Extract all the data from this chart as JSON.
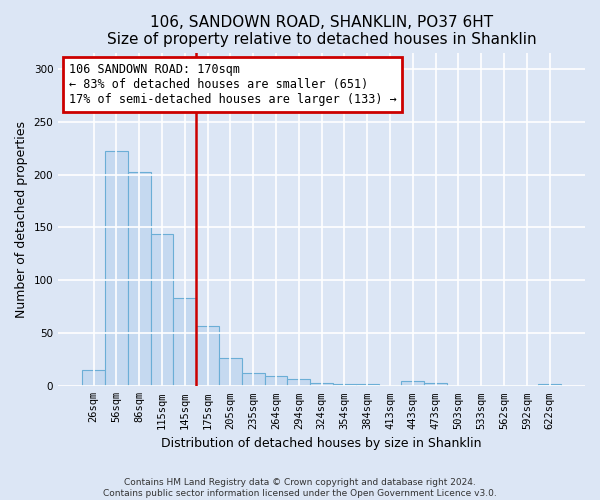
{
  "title1": "106, SANDOWN ROAD, SHANKLIN, PO37 6HT",
  "title2": "Size of property relative to detached houses in Shanklin",
  "xlabel": "Distribution of detached houses by size in Shanklin",
  "ylabel": "Number of detached properties",
  "footnote": "Contains HM Land Registry data © Crown copyright and database right 2024.\nContains public sector information licensed under the Open Government Licence v3.0.",
  "bar_labels": [
    "26sqm",
    "56sqm",
    "86sqm",
    "115sqm",
    "145sqm",
    "175sqm",
    "205sqm",
    "235sqm",
    "264sqm",
    "294sqm",
    "324sqm",
    "354sqm",
    "384sqm",
    "413sqm",
    "443sqm",
    "473sqm",
    "503sqm",
    "533sqm",
    "562sqm",
    "592sqm",
    "622sqm"
  ],
  "bar_values": [
    15,
    222,
    202,
    144,
    83,
    57,
    27,
    13,
    10,
    7,
    3,
    2,
    2,
    0,
    5,
    3,
    0,
    0,
    0,
    0,
    2
  ],
  "bar_color": "#c5d9f0",
  "bar_edgecolor": "#6baed6",
  "vline_color": "#cc0000",
  "annotation_line1": "106 SANDOWN ROAD: 170sqm",
  "annotation_line2": "← 83% of detached houses are smaller (651)",
  "annotation_line3": "17% of semi-detached houses are larger (133) →",
  "annotation_box_color": "white",
  "annotation_box_edgecolor": "#cc0000",
  "ylim": [
    0,
    315
  ],
  "yticks": [
    0,
    50,
    100,
    150,
    200,
    250,
    300
  ],
  "background_color": "#dce6f5",
  "axes_background": "#dce6f5",
  "grid_color": "white",
  "title1_fontsize": 11,
  "title2_fontsize": 10,
  "xlabel_fontsize": 9,
  "ylabel_fontsize": 9,
  "tick_fontsize": 7.5,
  "annotation_fontsize": 8.5
}
